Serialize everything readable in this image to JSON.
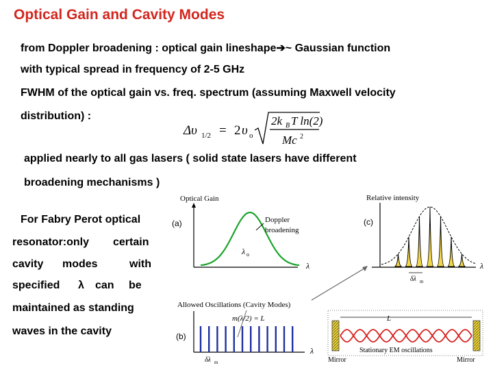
{
  "title": "Optical Gain and Cavity Modes",
  "lines": {
    "l1_a": "from Doppler broadening : optical gain lineshape",
    "l1_b": "~ Gaussian function",
    "l2": "with typical spread in frequency of 2-5 GHz",
    "l3": "FWHM of the optical gain vs. freq. spectrum (assuming Maxwell  velocity",
    "l4": "distribution) :",
    "l5": "applied nearly to all gas lasers  ( solid state lasers have different",
    "l6": "broadening mechanisms )"
  },
  "formula": {
    "lhs": "Δυ",
    "lhs_sub": "1/2",
    "eq": "=",
    "two": "2",
    "v": "υ",
    "v_sub": "o",
    "num": "2k",
    "num_sub": "B",
    "num_rest": "T ln(2)",
    "den": "Mc",
    "den_sup": "2"
  },
  "side_text": {
    "s1": "For Fabry Perot optical",
    "s2a": "resonator:only",
    "s2b": "certain",
    "s3a": "cavity",
    "s3b": "modes",
    "s3c": "with",
    "s4a": "specified",
    "s4b": "λ",
    "s4c": "can",
    "s4d": "be",
    "s5": "maintained as standing",
    "s6": "waves in the cavity"
  },
  "figure": {
    "a": {
      "panel_label": "(a)",
      "axis_title": "Optical Gain",
      "annotation_1": "Doppler",
      "annotation_2": "broadening",
      "center_label": "λ",
      "center_sub": "o",
      "x_label": "λ",
      "curve_color": "#1aa32a"
    },
    "b": {
      "panel_label": "(b)",
      "axis_title": "Allowed Oscillations (Cavity Modes)",
      "condition": "m(λ/2) = L",
      "x_label": "λ",
      "spacing_label": "δλ",
      "spacing_sub": "m",
      "mode_color": "#1f2f9e",
      "mode_count": 12
    },
    "c": {
      "panel_label": "(c)",
      "axis_title": "Relative intensity",
      "x_label": "λ",
      "spacing_label": "δλ",
      "spacing_sub": "m"
    },
    "cavity": {
      "length_label": "L",
      "caption": "Stationary EM oscillations",
      "mirror_left": "Mirror",
      "mirror_right": "Mirror",
      "wave_color": "#d8201c",
      "mirror_color": "#e8d23a"
    }
  }
}
